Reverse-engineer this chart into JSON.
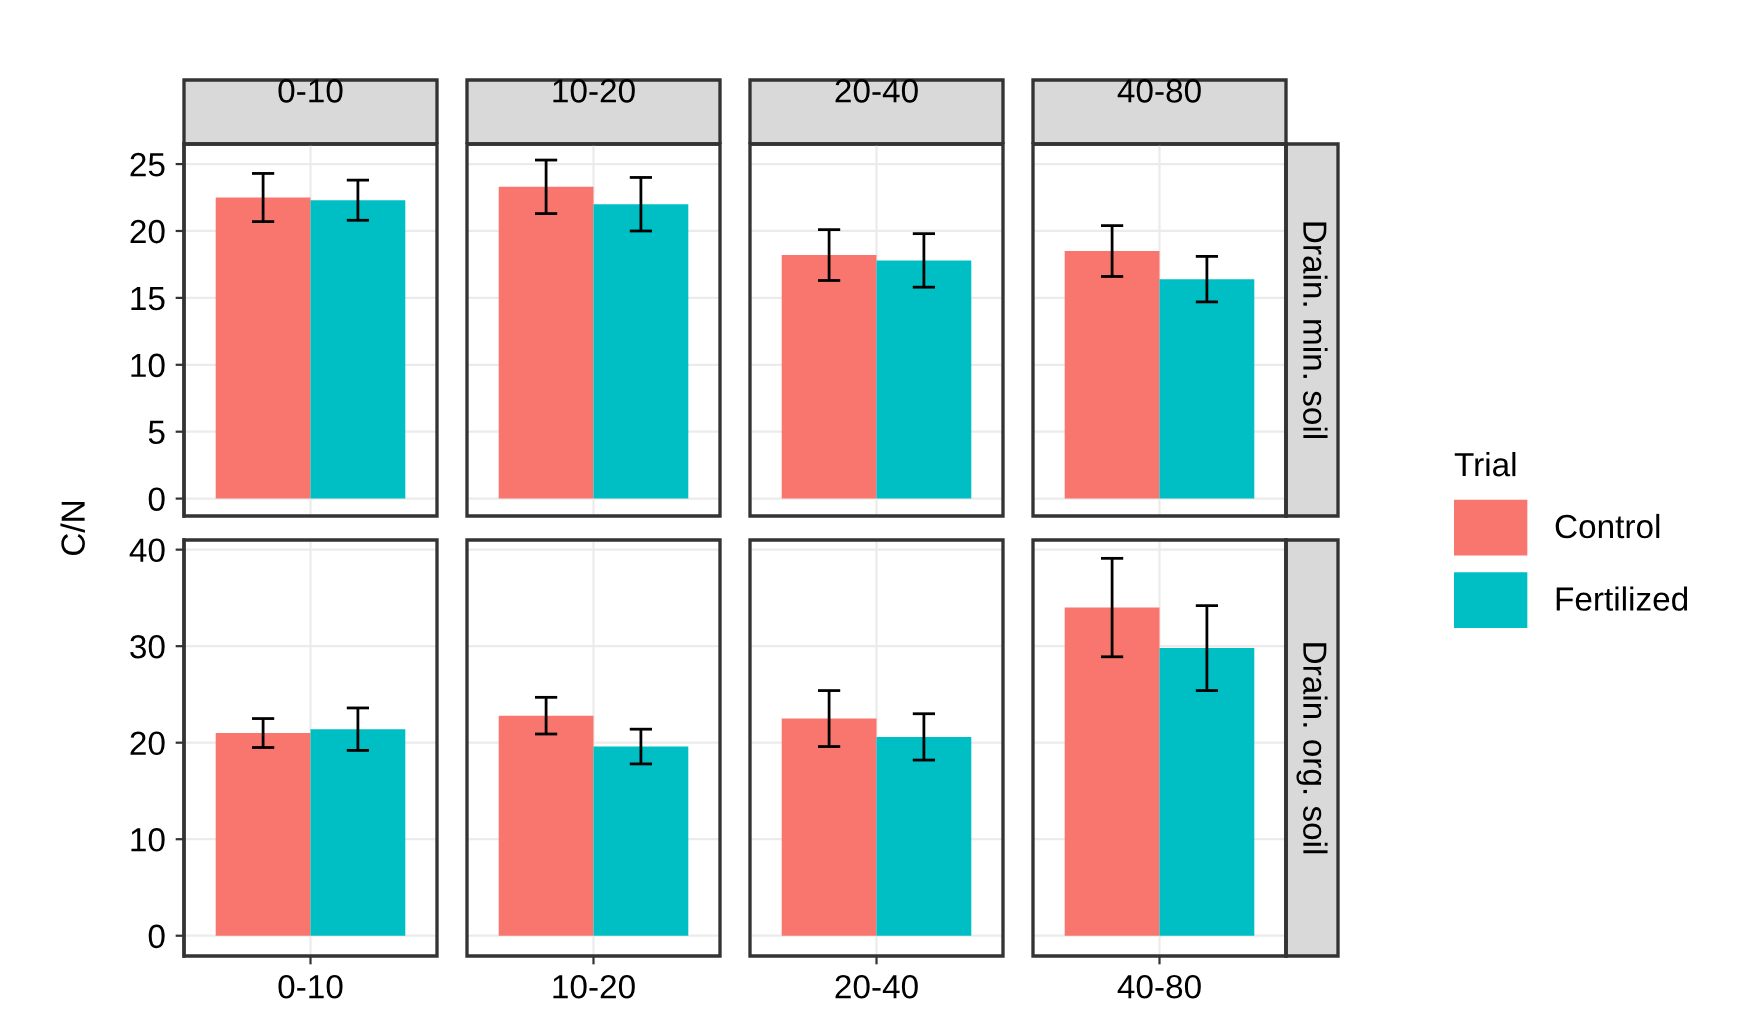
{
  "chart_data": [
    {
      "type": "bar",
      "categories": [
        "0-10",
        "10-20",
        "20-40",
        "40-80"
      ],
      "ylabel": "C/N",
      "legend": "right",
      "legend_title": "Trial",
      "annotations": [
        "Drain. min. soil"
      ],
      "ylim": [
        -1.3,
        26.5
      ],
      "yticks": [
        0,
        5,
        10,
        15,
        20,
        25
      ],
      "grid": true,
      "series": [
        {
          "name": "Control",
          "color": "#f8766d",
          "values": [
            22.5,
            23.3,
            18.2,
            18.5
          ],
          "errors": [
            1.8,
            2.0,
            1.9,
            1.9
          ]
        },
        {
          "name": "Fertilized",
          "color": "#00bfc4",
          "values": [
            22.3,
            22.0,
            17.8,
            16.4
          ],
          "errors": [
            1.5,
            2.0,
            2.0,
            1.7
          ]
        }
      ]
    },
    {
      "type": "bar",
      "categories": [
        "0-10",
        "10-20",
        "20-40",
        "40-80"
      ],
      "annotations": [
        "Drain. org. soil"
      ],
      "ylim": [
        -2.1,
        41
      ],
      "yticks": [
        0,
        10,
        20,
        30,
        40
      ],
      "grid": true,
      "series": [
        {
          "color": "#f8766d",
          "values": [
            21.0,
            22.8,
            22.5,
            34.0
          ],
          "errors": [
            1.5,
            1.9,
            2.9,
            5.1
          ]
        },
        {
          "color": "#00bfc4",
          "values": [
            21.4,
            19.6,
            20.6,
            29.8
          ],
          "errors": [
            2.2,
            1.8,
            2.4,
            4.4
          ]
        }
      ]
    }
  ]
}
